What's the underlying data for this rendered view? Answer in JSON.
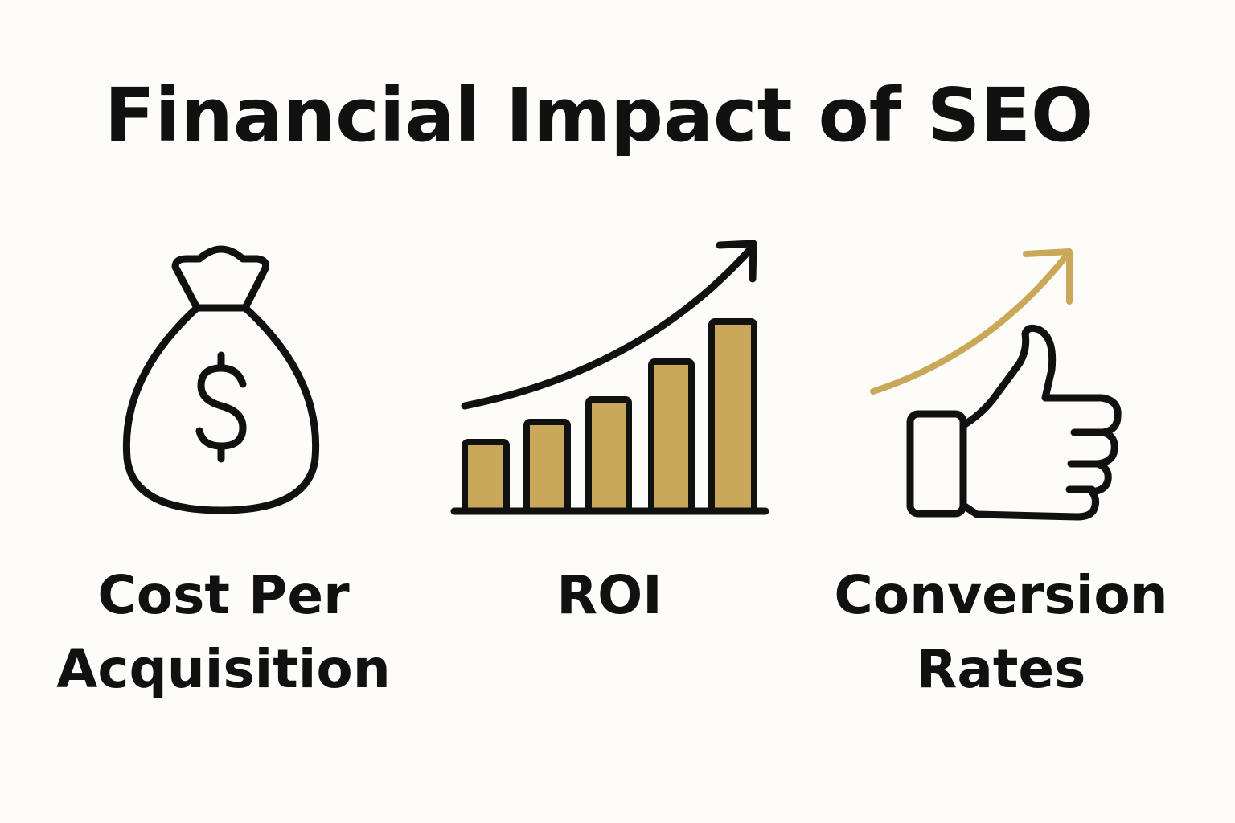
{
  "header": {
    "title": "Financial Impact of SEO"
  },
  "items": [
    {
      "label": [
        "Cost Per",
        "Acquisition"
      ]
    },
    {
      "label": [
        "ROI"
      ]
    },
    {
      "label": [
        "Conversion",
        "Rates"
      ]
    }
  ]
}
